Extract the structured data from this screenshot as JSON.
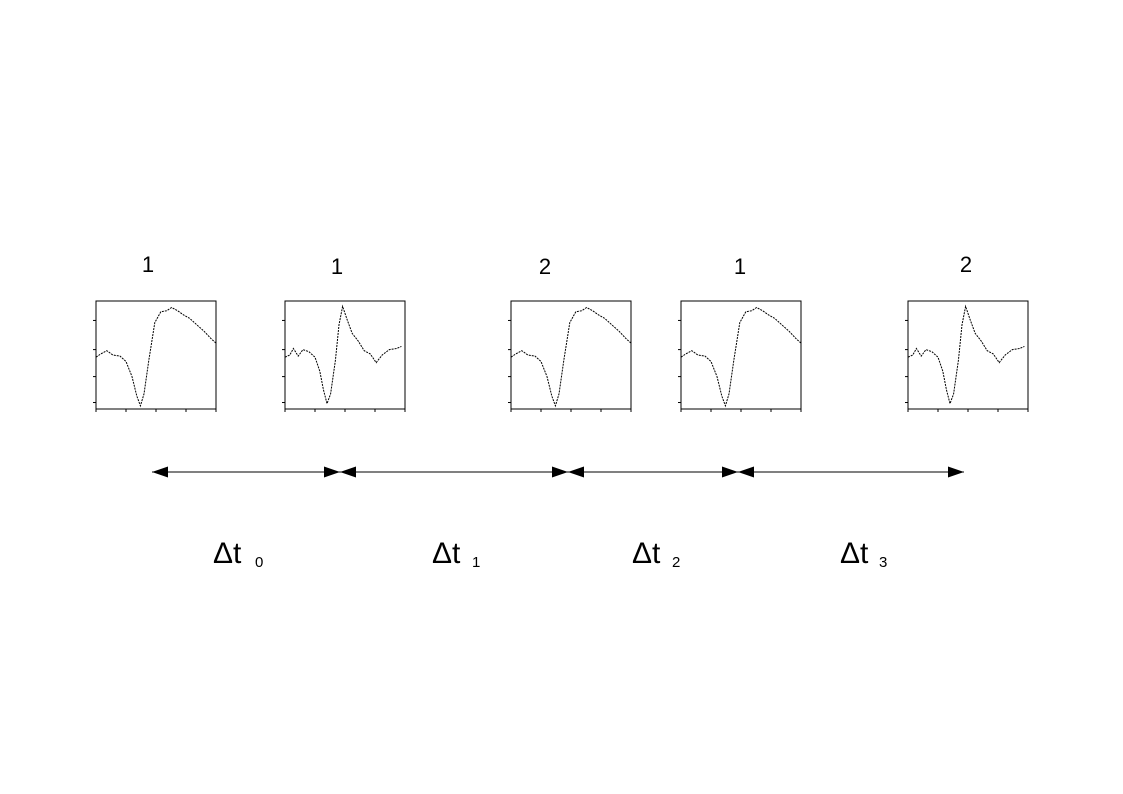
{
  "diagram": {
    "spikes": [
      {
        "label": "1",
        "waveform": "type-1"
      },
      {
        "label": "1",
        "waveform": "type-2"
      },
      {
        "label": "2",
        "waveform": "type-1"
      },
      {
        "label": "1",
        "waveform": "type-1"
      },
      {
        "label": "2",
        "waveform": "type-2"
      }
    ],
    "intervals": [
      {
        "symbol": "Δt",
        "subscript": "0"
      },
      {
        "symbol": "Δt",
        "subscript": "1"
      },
      {
        "symbol": "Δt",
        "subscript": "2"
      },
      {
        "symbol": "Δt",
        "subscript": "3"
      }
    ]
  }
}
